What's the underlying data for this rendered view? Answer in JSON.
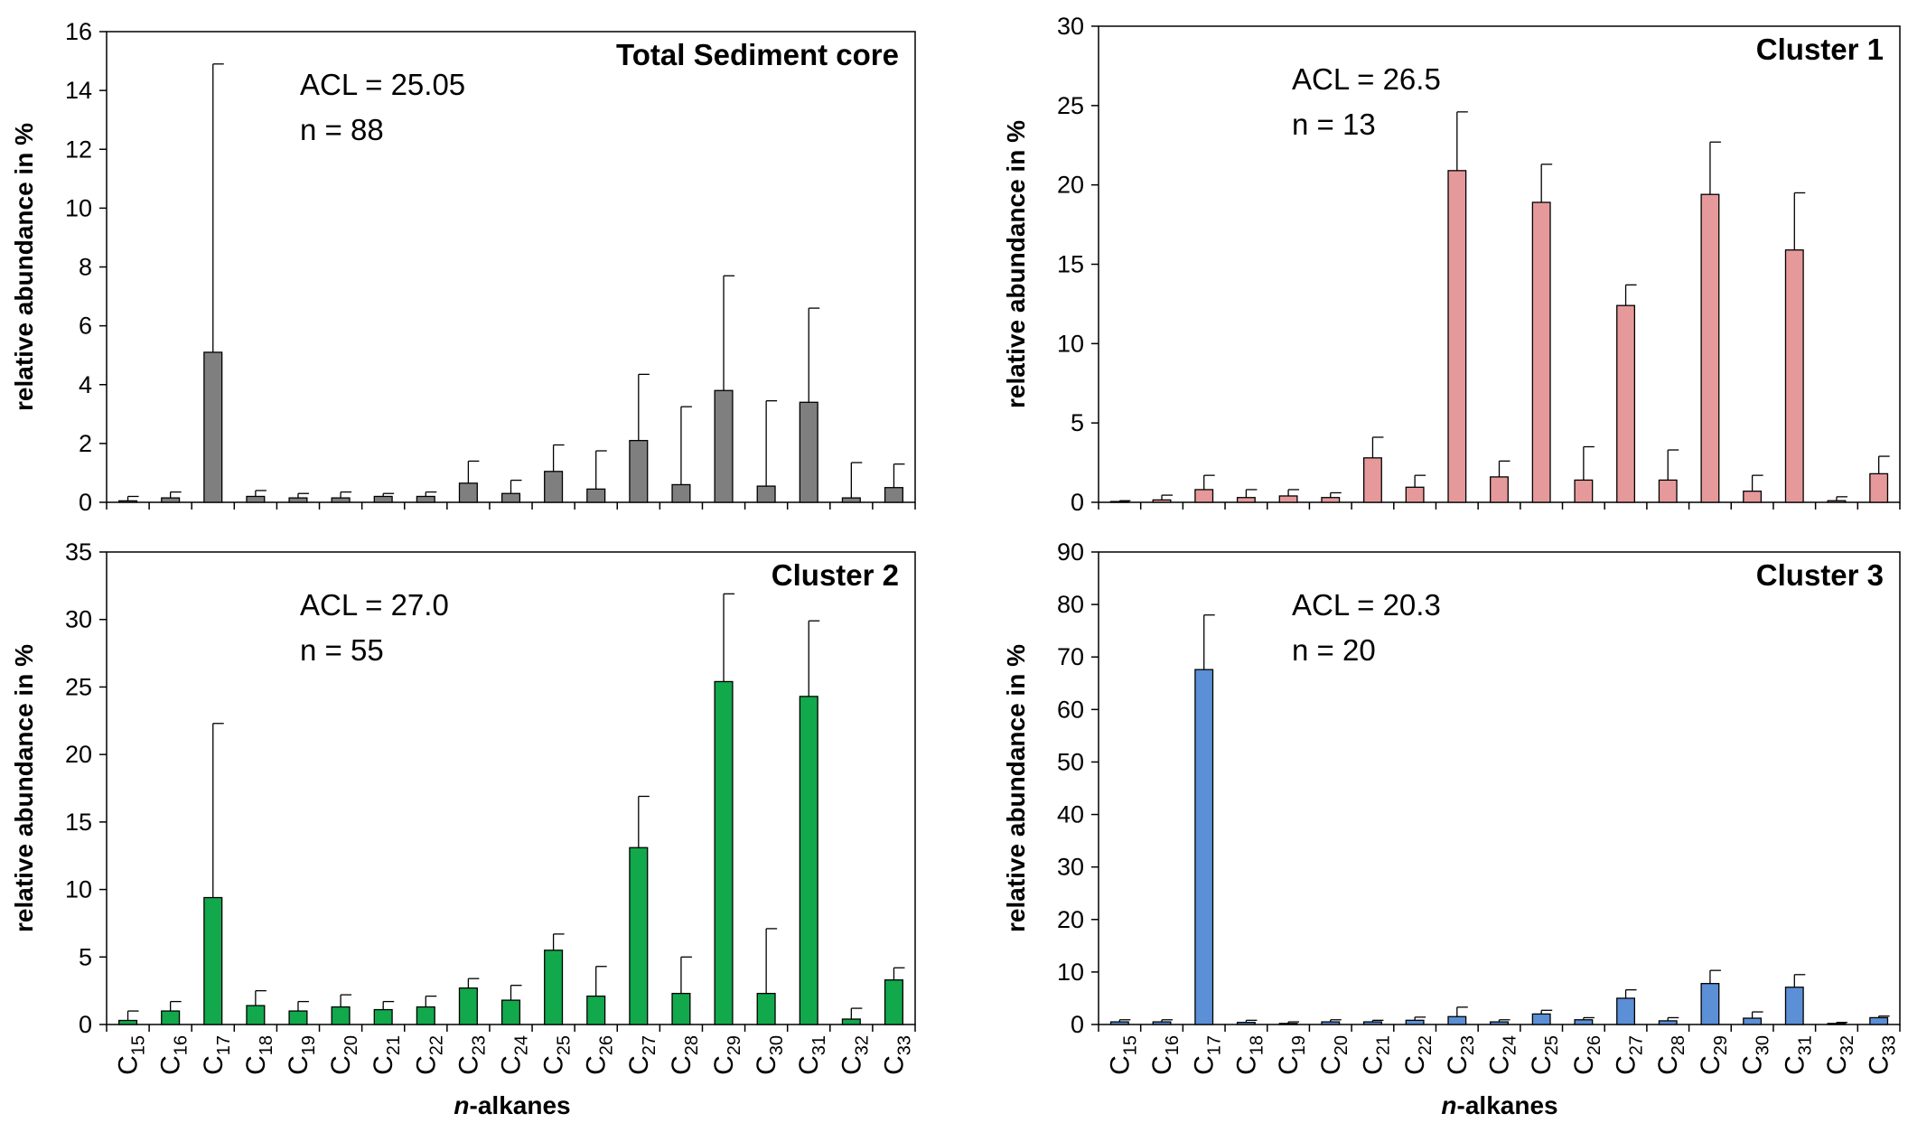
{
  "categories": [
    "15",
    "16",
    "17",
    "18",
    "19",
    "20",
    "21",
    "22",
    "23",
    "24",
    "25",
    "26",
    "27",
    "28",
    "29",
    "30",
    "31",
    "32",
    "33"
  ],
  "category_prefix": "C",
  "chart_data": [
    {
      "type": "bar",
      "title": "Total Sediment core",
      "ylabel": "relative abundance in %",
      "xlabel": "",
      "ylim": [
        0,
        16
      ],
      "yticks": [
        0,
        2,
        4,
        6,
        8,
        10,
        12,
        14,
        16
      ],
      "color": "#7f7f7f",
      "acl": "ACL = 25.05",
      "n": "n = 88",
      "values": [
        0.05,
        0.15,
        5.1,
        0.2,
        0.15,
        0.15,
        0.2,
        0.2,
        0.65,
        0.3,
        1.05,
        0.45,
        2.1,
        0.6,
        3.8,
        0.55,
        3.4,
        0.15,
        0.5
      ],
      "errors": [
        0.15,
        0.2,
        9.8,
        0.2,
        0.15,
        0.2,
        0.1,
        0.15,
        0.75,
        0.45,
        0.9,
        1.3,
        2.25,
        2.65,
        3.9,
        2.9,
        3.2,
        1.2,
        0.8
      ]
    },
    {
      "type": "bar",
      "title": "Cluster 1",
      "ylabel": "relative abundance in %",
      "xlabel": "",
      "ylim": [
        0,
        30
      ],
      "yticks": [
        0,
        5,
        10,
        15,
        20,
        25,
        30
      ],
      "color": "#e6999a",
      "acl": "ACL = 26.5",
      "n": "n = 13",
      "values": [
        0.05,
        0.15,
        0.8,
        0.3,
        0.4,
        0.3,
        2.8,
        0.95,
        20.9,
        1.6,
        18.9,
        1.4,
        12.4,
        1.4,
        19.4,
        0.7,
        15.9,
        0.1,
        1.8
      ],
      "errors": [
        0.05,
        0.3,
        0.9,
        0.5,
        0.4,
        0.3,
        1.3,
        0.75,
        3.7,
        1.0,
        2.4,
        2.1,
        1.3,
        1.9,
        3.3,
        1.0,
        3.6,
        0.25,
        1.1
      ]
    },
    {
      "type": "bar",
      "title": "Cluster 2",
      "ylabel": "relative abundance in %",
      "xlabel": "n-alkanes",
      "ylim": [
        0,
        35
      ],
      "yticks": [
        0,
        5,
        10,
        15,
        20,
        25,
        30,
        35
      ],
      "color": "#12a84c",
      "acl": "ACL = 27.0",
      "n": "n = 55",
      "values": [
        0.3,
        1.0,
        9.4,
        1.4,
        1.0,
        1.3,
        1.1,
        1.3,
        2.7,
        1.8,
        5.5,
        2.1,
        13.1,
        2.3,
        25.4,
        2.3,
        24.3,
        0.4,
        3.3
      ],
      "errors": [
        0.7,
        0.7,
        12.9,
        1.1,
        0.7,
        0.9,
        0.6,
        0.8,
        0.7,
        1.1,
        1.2,
        2.2,
        3.8,
        2.7,
        6.5,
        4.8,
        5.6,
        0.8,
        0.9
      ]
    },
    {
      "type": "bar",
      "title": "Cluster 3",
      "ylabel": "relative abundance in %",
      "xlabel": "n-alkanes",
      "ylim": [
        0,
        90
      ],
      "yticks": [
        0,
        10,
        20,
        30,
        40,
        50,
        60,
        70,
        80,
        90
      ],
      "color": "#5b8fd6",
      "acl": "ACL = 20.3",
      "n": "n = 20",
      "values": [
        0.5,
        0.5,
        67.6,
        0.4,
        0.2,
        0.5,
        0.5,
        0.8,
        1.5,
        0.5,
        2.0,
        0.9,
        5.0,
        0.7,
        7.8,
        1.2,
        7.1,
        0.2,
        1.3
      ],
      "errors": [
        0.4,
        0.4,
        10.4,
        0.4,
        0.3,
        0.4,
        0.3,
        0.6,
        1.8,
        0.4,
        0.7,
        0.4,
        1.6,
        0.6,
        2.5,
        1.2,
        2.4,
        0.2,
        0.3
      ]
    }
  ]
}
